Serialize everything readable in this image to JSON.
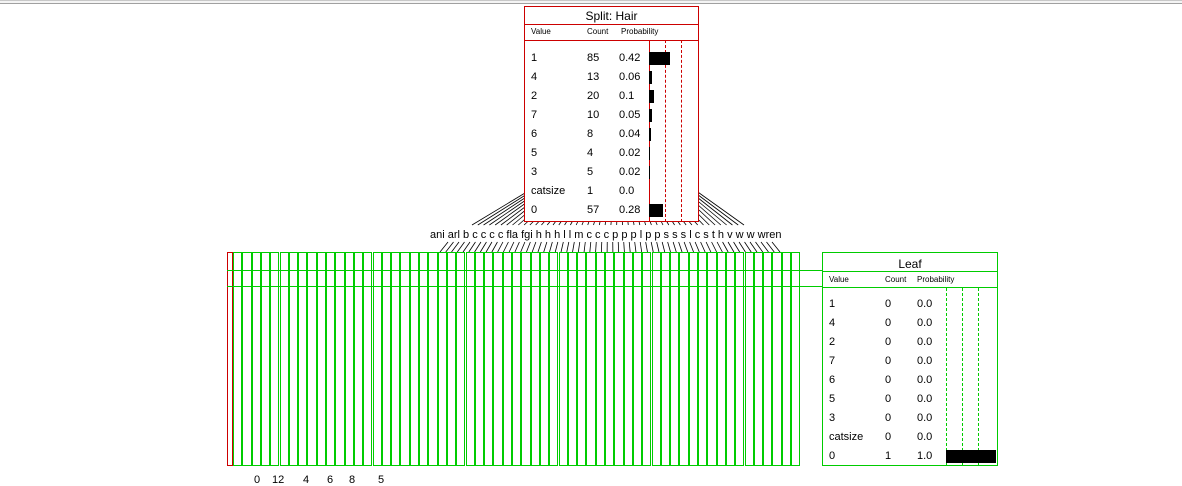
{
  "colors": {
    "split_border": "#cc0000",
    "leaf_border": "#00cc00",
    "bar": "#000000",
    "edge": "#000000"
  },
  "split_node": {
    "title": "Split: Hair",
    "headers": {
      "value": "Value",
      "count": "Count",
      "probability": "Probability"
    },
    "rows": [
      {
        "value": "1",
        "count": "85",
        "probability": "0.42",
        "p": 0.42
      },
      {
        "value": "4",
        "count": "13",
        "probability": "0.06",
        "p": 0.06
      },
      {
        "value": "2",
        "count": "20",
        "probability": "0.1",
        "p": 0.1
      },
      {
        "value": "7",
        "count": "10",
        "probability": "0.05",
        "p": 0.05
      },
      {
        "value": "6",
        "count": "8",
        "probability": "0.04",
        "p": 0.04
      },
      {
        "value": "5",
        "count": "4",
        "probability": "0.02",
        "p": 0.02
      },
      {
        "value": "3",
        "count": "5",
        "probability": "0.02",
        "p": 0.02
      },
      {
        "value": "catsize",
        "count": "1",
        "probability": "0.0",
        "p": 0.0
      },
      {
        "value": "0",
        "count": "57",
        "probability": "0.28",
        "p": 0.28
      }
    ]
  },
  "leaf_node": {
    "title": "Leaf",
    "headers": {
      "value": "Value",
      "count": "Count",
      "probability": "Probability"
    },
    "rows": [
      {
        "value": "1",
        "count": "0",
        "probability": "0.0",
        "p": 0.0
      },
      {
        "value": "4",
        "count": "0",
        "probability": "0.0",
        "p": 0.0
      },
      {
        "value": "2",
        "count": "0",
        "probability": "0.0",
        "p": 0.0
      },
      {
        "value": "7",
        "count": "0",
        "probability": "0.0",
        "p": 0.0
      },
      {
        "value": "6",
        "count": "0",
        "probability": "0.0",
        "p": 0.0
      },
      {
        "value": "5",
        "count": "0",
        "probability": "0.0",
        "p": 0.0
      },
      {
        "value": "3",
        "count": "0",
        "probability": "0.0",
        "p": 0.0
      },
      {
        "value": "catsize",
        "count": "0",
        "probability": "0.0",
        "p": 0.0
      },
      {
        "value": "0",
        "count": "1",
        "probability": "1.0",
        "p": 1.0
      }
    ]
  },
  "child_labels_text": "ani arl b c c c c fla fgi h h h l l m c c c p p p l p p s s s l c s t h v w w wren",
  "child_labels": [
    "ani",
    "arl",
    "b",
    "c",
    "c",
    "c",
    "c",
    "fla",
    "fgi",
    "h",
    "h",
    "h",
    "l",
    "l",
    "m",
    "c",
    "c",
    "c",
    "p",
    "p",
    "p",
    "l",
    "p",
    "p",
    "s",
    "s",
    "s",
    "l",
    "c",
    "s",
    "t",
    "h",
    "v",
    "w",
    "w",
    "wren"
  ],
  "leaf_count": 62,
  "bottom_labels": [
    "0",
    "12",
    "4",
    "6",
    "8",
    "5"
  ]
}
